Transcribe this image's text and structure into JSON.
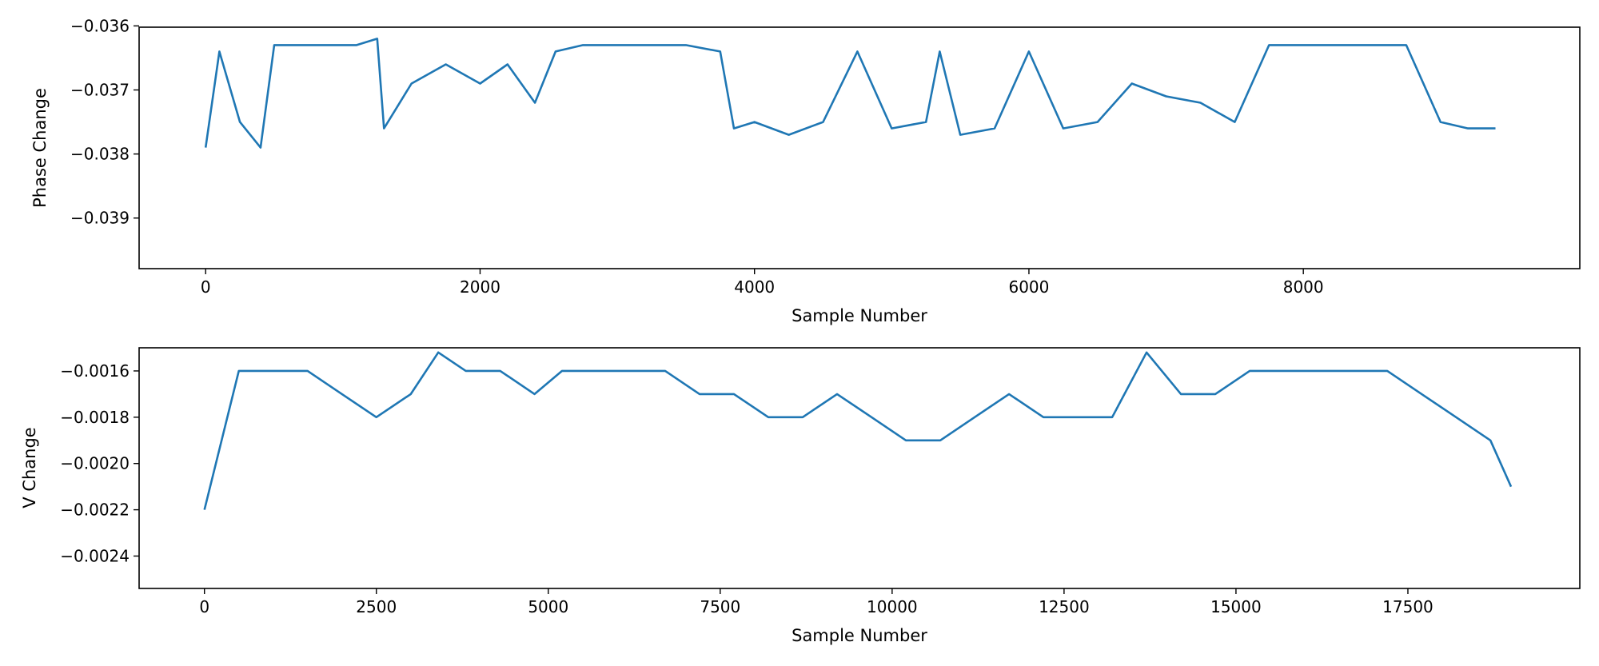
{
  "chart_data": [
    {
      "type": "line",
      "title": "",
      "xlabel": "Sample Number",
      "ylabel": "Phase Change",
      "xlim": [
        -485,
        10015
      ],
      "ylim": [
        -0.03979,
        -0.03602
      ],
      "xticks": [
        0,
        2000,
        4000,
        6000,
        8000
      ],
      "xtick_labels": [
        "0",
        "2000",
        "4000",
        "6000",
        "8000"
      ],
      "yticks": [
        -0.036,
        -0.037,
        -0.038,
        -0.039
      ],
      "ytick_labels": [
        "−0.036",
        "−0.037",
        "−0.038",
        "−0.039"
      ],
      "grid": false,
      "legend": "none",
      "color": "#1f77b4",
      "series": [
        {
          "x": [
            0,
            100,
            250,
            400,
            500,
            650,
            800,
            950,
            1100,
            1250,
            1300,
            1500,
            1750,
            2000,
            2200,
            2400,
            2550,
            2750,
            3000,
            3250,
            3500,
            3750,
            3850,
            4000,
            4250,
            4500,
            4750,
            5000,
            5250,
            5350,
            5500,
            5750,
            6000,
            6250,
            6500,
            6750,
            7000,
            7250,
            7500,
            7750,
            8000,
            8250,
            8500,
            8750,
            9000,
            9200,
            9400
          ],
          "y": [
            -0.0379,
            -0.0364,
            -0.0375,
            -0.0379,
            -0.0363,
            -0.0363,
            -0.0363,
            -0.0363,
            -0.0363,
            -0.0362,
            -0.0376,
            -0.0369,
            -0.0366,
            -0.0369,
            -0.0366,
            -0.0372,
            -0.0364,
            -0.0363,
            -0.0363,
            -0.0363,
            -0.0363,
            -0.0364,
            -0.0376,
            -0.0375,
            -0.0377,
            -0.0375,
            -0.0364,
            -0.0376,
            -0.0375,
            -0.0364,
            -0.0377,
            -0.0376,
            -0.0364,
            -0.0376,
            -0.0375,
            -0.0369,
            -0.0371,
            -0.0372,
            -0.0375,
            -0.0363,
            -0.0363,
            -0.0363,
            -0.0363,
            -0.0363,
            -0.0375,
            -0.0376,
            -0.0376
          ]
        }
      ]
    },
    {
      "type": "line",
      "title": "",
      "xlabel": "Sample Number",
      "ylabel": "V Change",
      "xlim": [
        -950,
        20000
      ],
      "ylim": [
        -0.00254,
        -0.0015
      ],
      "xticks": [
        0,
        2500,
        5000,
        7500,
        10000,
        12500,
        15000,
        17500
      ],
      "xtick_labels": [
        "0",
        "2500",
        "5000",
        "7500",
        "10000",
        "12500",
        "15000",
        "17500"
      ],
      "yticks": [
        -0.0016,
        -0.0018,
        -0.002,
        -0.0022,
        -0.0024
      ],
      "ytick_labels": [
        "−0.0016",
        "−0.0018",
        "−0.0020",
        "−0.0022",
        "−0.0024"
      ],
      "grid": false,
      "legend": "none",
      "color": "#1f77b4",
      "series": [
        {
          "x": [
            0,
            500,
            1000,
            1500,
            2000,
            2500,
            3000,
            3400,
            3800,
            4300,
            4800,
            5200,
            5700,
            6200,
            6700,
            7200,
            7700,
            8200,
            8700,
            9200,
            9700,
            10200,
            10700,
            11200,
            11700,
            12200,
            12700,
            13200,
            13700,
            14200,
            14700,
            15200,
            15700,
            16200,
            16700,
            17200,
            17700,
            18200,
            18700,
            19000
          ],
          "y": [
            -0.0022,
            -0.0016,
            -0.0016,
            -0.0016,
            -0.0017,
            -0.0018,
            -0.0017,
            -0.00152,
            -0.0016,
            -0.0016,
            -0.0017,
            -0.0016,
            -0.0016,
            -0.0016,
            -0.0016,
            -0.0017,
            -0.0017,
            -0.0018,
            -0.0018,
            -0.0017,
            -0.0018,
            -0.0019,
            -0.0019,
            -0.0018,
            -0.0017,
            -0.0018,
            -0.0018,
            -0.0018,
            -0.00152,
            -0.0017,
            -0.0017,
            -0.0016,
            -0.0016,
            -0.0016,
            -0.0016,
            -0.0016,
            -0.0017,
            -0.0018,
            -0.0019,
            -0.0021
          ]
        }
      ]
    }
  ]
}
